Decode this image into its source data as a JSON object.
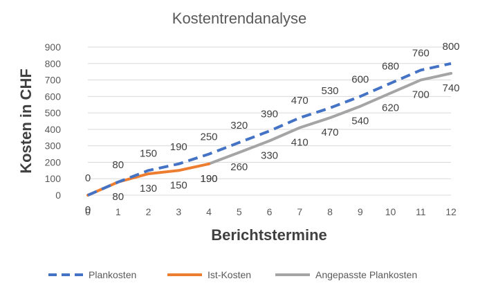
{
  "chart_data": {
    "type": "line",
    "title": "Kostentrendanalyse",
    "xlabel": "Berichtstermine",
    "ylabel": "Kosten in CHF",
    "x": [
      0,
      1,
      2,
      3,
      4,
      5,
      6,
      7,
      8,
      9,
      10,
      11,
      12
    ],
    "ylim": [
      0,
      900
    ],
    "yticks": [
      0,
      100,
      200,
      300,
      400,
      500,
      600,
      700,
      800,
      900
    ],
    "grid": true,
    "legend_position": "bottom",
    "series": [
      {
        "name": "Plankosten",
        "style": "dashed",
        "color": "#4472C4",
        "x": [
          0,
          1,
          2,
          3,
          4,
          5,
          6,
          7,
          8,
          9,
          10,
          11,
          12
        ],
        "values": [
          0,
          80,
          150,
          190,
          250,
          320,
          390,
          470,
          530,
          600,
          680,
          760,
          800
        ],
        "label_position": "above"
      },
      {
        "name": "Ist-Kosten",
        "style": "solid",
        "color": "#ED7D31",
        "x": [
          0,
          1,
          2,
          3,
          4
        ],
        "values": [
          0,
          80,
          130,
          150,
          190
        ],
        "label_position": "below"
      },
      {
        "name": "Angepasste Plankosten",
        "style": "solid",
        "color": "#A5A5A5",
        "x": [
          4,
          5,
          6,
          7,
          8,
          9,
          10,
          11,
          12
        ],
        "values": [
          190,
          260,
          330,
          410,
          470,
          540,
          620,
          700,
          740
        ],
        "label_position": "below"
      }
    ]
  }
}
